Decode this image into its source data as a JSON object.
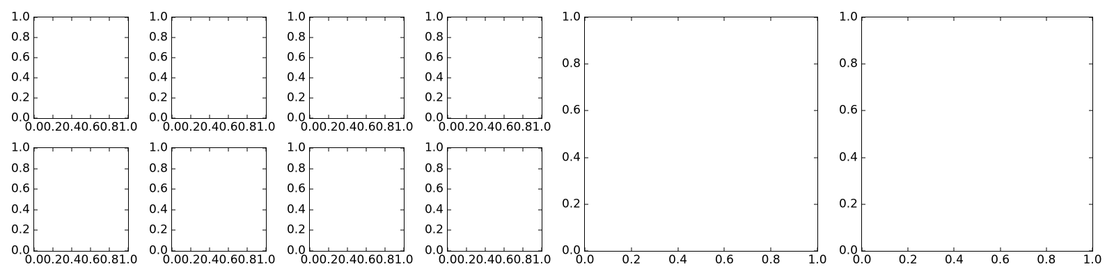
{
  "figure": {
    "kind": "matplotlib-style figure of empty subplots",
    "background_color": "#ffffff",
    "spine_color": "#000000",
    "tick_color": "#000000",
    "tick_label_color": "#000000"
  },
  "chart_data": {
    "layout": "2 rows x 4 columns of small square empty axes on the left; 2 large full-height square empty axes on the right",
    "axes_defaults": {
      "type": "line",
      "series": [],
      "title": "",
      "xlabel": "",
      "ylabel": "",
      "xlim": [
        0.0,
        1.0
      ],
      "ylim": [
        0.0,
        1.0
      ],
      "x_ticks": [
        0.0,
        0.2,
        0.4,
        0.6,
        0.8,
        1.0
      ],
      "y_ticks": [
        0.0,
        0.2,
        0.4,
        0.6,
        0.8,
        1.0
      ],
      "x_tick_labels": [
        "0.0",
        "0.2",
        "0.4",
        "0.6",
        "0.8",
        "1.0"
      ],
      "y_tick_labels": [
        "0.0",
        "0.2",
        "0.4",
        "0.6",
        "0.8",
        "1.0"
      ],
      "grid": false,
      "legend": null,
      "tick_direction": "in",
      "ticks_on_all_four_sides": true
    },
    "subplots": [
      {
        "id": "small-row1-col1",
        "size": "small"
      },
      {
        "id": "small-row1-col2",
        "size": "small"
      },
      {
        "id": "small-row1-col3",
        "size": "small"
      },
      {
        "id": "small-row1-col4",
        "size": "small"
      },
      {
        "id": "small-row2-col1",
        "size": "small"
      },
      {
        "id": "small-row2-col2",
        "size": "small"
      },
      {
        "id": "small-row2-col3",
        "size": "small"
      },
      {
        "id": "small-row2-col4",
        "size": "small"
      },
      {
        "id": "large-1",
        "size": "large"
      },
      {
        "id": "large-2",
        "size": "large"
      }
    ]
  }
}
